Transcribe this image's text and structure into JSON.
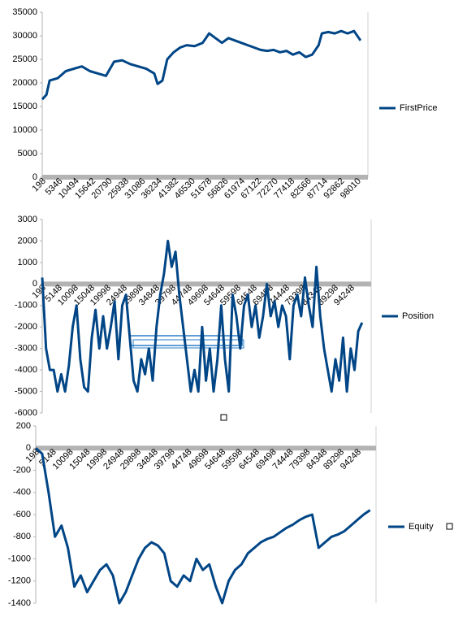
{
  "chart_data": [
    {
      "type": "line",
      "x": [
        198,
        1500,
        2500,
        5000,
        7500,
        10000,
        12500,
        15000,
        17500,
        20000,
        22500,
        25000,
        27500,
        30000,
        32500,
        35000,
        36000,
        37500,
        39000,
        41000,
        43000,
        45000,
        47500,
        50000,
        52000,
        54000,
        56000,
        58000,
        60000,
        62000,
        64000,
        66000,
        68000,
        70000,
        72000,
        74000,
        76000,
        78000,
        80000,
        82000,
        84000,
        86000,
        87000,
        89000,
        91000,
        93000,
        95000,
        97000,
        99000
      ],
      "series": [
        {
          "name": "FirstPrice",
          "color": "#004586",
          "values": [
            16500,
            17500,
            20500,
            21000,
            22500,
            23000,
            23500,
            22500,
            22000,
            21500,
            24500,
            24800,
            24000,
            23500,
            23000,
            22000,
            19800,
            20500,
            25000,
            26500,
            27500,
            28000,
            27800,
            28500,
            30500,
            29500,
            28500,
            29500,
            29000,
            28500,
            28000,
            27500,
            27000,
            26800,
            27000,
            26500,
            26800,
            26000,
            26500,
            25500,
            26000,
            28000,
            30500,
            30800,
            30500,
            31000,
            30500,
            31000,
            29000
          ]
        }
      ],
      "xlim": [
        198,
        101300
      ],
      "xticks": [
        198,
        5346,
        10494,
        15642,
        20790,
        25938,
        31086,
        36234,
        41382,
        46530,
        51678,
        56826,
        61974,
        67122,
        72270,
        77418,
        82566,
        87714,
        92862,
        98010
      ],
      "ylim": [
        0,
        35000
      ],
      "yticks": [
        0,
        5000,
        10000,
        15000,
        20000,
        25000,
        30000,
        35000
      ],
      "grid": false,
      "legend": "right"
    },
    {
      "type": "line",
      "x": [
        198,
        1358,
        2518,
        3678,
        4838,
        5998,
        7158,
        8318,
        9478,
        10638,
        11798,
        12958,
        14118,
        15278,
        16438,
        17598,
        18758,
        19918,
        21078,
        22238,
        23398,
        24558,
        25718,
        26878,
        28038,
        29198,
        30358,
        31518,
        32678,
        33838,
        34998,
        36158,
        37318,
        38478,
        39638,
        40798,
        41958,
        43118,
        44278,
        45438,
        46598,
        47758,
        48918,
        50078,
        51238,
        52398,
        53558,
        54718,
        55878,
        57038,
        58198,
        59358,
        60518,
        61678,
        62838,
        63998,
        65158,
        66318,
        67478,
        68638,
        69798,
        70958,
        72118,
        73278,
        74438,
        75598,
        76758,
        77918,
        79078,
        80238,
        81398,
        82558,
        83718,
        84878,
        86038,
        87198,
        88358,
        89518,
        90678,
        91838,
        92998,
        94158,
        95318,
        96478,
        97638
      ],
      "series": [
        {
          "name": "Position",
          "color": "#004586",
          "values": [
            300,
            -3000,
            -4000,
            -4000,
            -5000,
            -4200,
            -5000,
            -3800,
            -2000,
            -1000,
            -3500,
            -4800,
            -5000,
            -2500,
            -1200,
            -3000,
            -1500,
            -3000,
            -2000,
            -800,
            -3500,
            -1000,
            -500,
            -2500,
            -4500,
            -5000,
            -3500,
            -4200,
            -3000,
            -4500,
            -2000,
            -500,
            500,
            2000,
            800,
            1500,
            -500,
            -2000,
            -3500,
            -5000,
            -4000,
            -5000,
            -2000,
            -4500,
            -3000,
            -5000,
            -3500,
            -1000,
            -3500,
            -5000,
            -500,
            -1500,
            -3000,
            -1000,
            -500,
            -2000,
            -1000,
            -2500,
            -1500,
            0,
            -1500,
            -800,
            -2000,
            -1000,
            -1500,
            -3500,
            -1000,
            -500,
            -1500,
            300,
            -1000,
            -2000,
            800,
            -1500,
            -3000,
            -4000,
            -5000,
            -3500,
            -4500,
            -2500,
            -5000,
            -3000,
            -4000,
            -2200,
            -1800
          ]
        }
      ],
      "xlim": [
        198,
        100400
      ],
      "xticks": [
        198,
        5148,
        10098,
        15048,
        19998,
        24948,
        29898,
        34848,
        39798,
        44748,
        49698,
        54648,
        59598,
        64548,
        69498,
        74448,
        79398,
        84348,
        89298,
        94248
      ],
      "ylim": [
        -6000,
        3000
      ],
      "yticks": [
        -6000,
        -5000,
        -4000,
        -3000,
        -2000,
        -1000,
        0,
        1000,
        2000,
        3000
      ],
      "grid": false,
      "legend": "right"
    },
    {
      "type": "line",
      "x": [
        198,
        2078,
        3958,
        5838,
        7718,
        9598,
        11478,
        13358,
        15238,
        17118,
        18998,
        20878,
        22758,
        24638,
        26518,
        28398,
        30278,
        32158,
        34038,
        35918,
        37798,
        39678,
        41558,
        43438,
        45318,
        47198,
        49078,
        50958,
        52838,
        54718,
        56598,
        58478,
        60358,
        62238,
        64118,
        65998,
        67878,
        69758,
        71638,
        73518,
        75398,
        77278,
        79158,
        81038,
        82918,
        84798,
        86678,
        88558,
        90438,
        92318,
        94198,
        96078,
        97958
      ],
      "series": [
        {
          "name": "Equity",
          "color": "#004586",
          "values": [
            0,
            -50,
            -400,
            -800,
            -700,
            -900,
            -1250,
            -1150,
            -1300,
            -1200,
            -1100,
            -1050,
            -1150,
            -1400,
            -1300,
            -1150,
            -1000,
            -900,
            -850,
            -880,
            -950,
            -1200,
            -1250,
            -1150,
            -1200,
            -1000,
            -1100,
            -1050,
            -1250,
            -1400,
            -1200,
            -1100,
            -1050,
            -950,
            -900,
            -850,
            -820,
            -800,
            -760,
            -720,
            -690,
            -650,
            -620,
            -600,
            -900,
            -850,
            -800,
            -780,
            -750,
            -700,
            -650,
            -600,
            -560
          ]
        }
      ],
      "xlim": [
        198,
        99700
      ],
      "xticks": [
        198,
        5148,
        10098,
        15048,
        19998,
        24948,
        29898,
        34848,
        39798,
        44748,
        49698,
        54648,
        59598,
        64548,
        69498,
        74448,
        79398,
        84348,
        89298,
        94248
      ],
      "ylim": [
        -1400,
        200
      ],
      "yticks": [
        -1400,
        -1200,
        -1000,
        -800,
        -600,
        -400,
        -200,
        0,
        200
      ],
      "grid": false,
      "legend": "right"
    }
  ]
}
